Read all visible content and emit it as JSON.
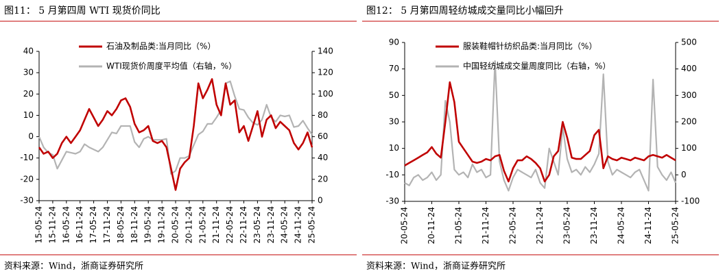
{
  "chart_data": [
    {
      "type": "line",
      "title": "图11：  5 月第四周 WTI 现货价同比",
      "source": "资料来源：Wind，浙商证券研究所",
      "categories": [
        "15-05-24",
        null,
        null,
        "15-11-24",
        null,
        null,
        "16-05-24",
        null,
        null,
        "16-11-24",
        null,
        null,
        "17-05-24",
        null,
        null,
        "17-11-24",
        null,
        null,
        "18-05-24",
        null,
        null,
        "18-11-24",
        null,
        null,
        "19-05-24",
        null,
        null,
        "19-11-24",
        null,
        null,
        "20-05-24",
        null,
        null,
        "20-11-24",
        null,
        null,
        "21-05-24",
        null,
        null,
        "21-11-24",
        null,
        null,
        "22-05-24",
        null,
        null,
        "22-11-24",
        null,
        null,
        "23-05-24",
        null,
        null,
        "23-11-24",
        null,
        null,
        "24-05-24",
        null,
        null,
        "24-11-24",
        null,
        null,
        "25-05-24"
      ],
      "ylim": [
        -30,
        40
      ],
      "yticks": [
        -30,
        -20,
        -10,
        0,
        10,
        20,
        30,
        40
      ],
      "y2lim": [
        0,
        140
      ],
      "y2ticks": [
        0,
        20,
        40,
        60,
        80,
        100,
        120,
        140
      ],
      "series": [
        {
          "name": "石油及制品类:当月同比（%）",
          "color": "#c00000",
          "values": [
            -5,
            -8,
            -7,
            -10,
            -8,
            -3,
            0,
            -3,
            0,
            3,
            8,
            13,
            9,
            5,
            8,
            12,
            10,
            13,
            17,
            18,
            14,
            6,
            2,
            3,
            5,
            -2,
            -3,
            -2,
            -5,
            -15,
            -25,
            -15,
            -12,
            -10,
            5,
            25,
            18,
            22,
            27,
            15,
            10,
            25,
            15,
            17,
            2,
            5,
            -2,
            5,
            12,
            0,
            8,
            10,
            4,
            7,
            5,
            3,
            -3,
            -6,
            -3,
            2,
            -5
          ]
        },
        {
          "name": "WTI现货价周度平均值（右轴，%）",
          "color": "#b3b3b3",
          "axis": "y2",
          "values": [
            60,
            50,
            45,
            43,
            30,
            38,
            46,
            45,
            44,
            46,
            53,
            50,
            48,
            46,
            50,
            57,
            64,
            63,
            70,
            70,
            70,
            55,
            50,
            58,
            60,
            57,
            57,
            57,
            58,
            25,
            28,
            40,
            40,
            42,
            52,
            62,
            65,
            72,
            72,
            78,
            85,
            110,
            112,
            98,
            86,
            85,
            78,
            73,
            71,
            76,
            90,
            78,
            74,
            80,
            79,
            80,
            69,
            70,
            75,
            68,
            62
          ]
        }
      ]
    },
    {
      "type": "line",
      "title": "图12：  5 月第四周轻纺城成交量同比小幅回升",
      "source": "资料来源：Wind，浙商证券研究所",
      "categories": [
        "20-05-24",
        null,
        null,
        null,
        null,
        null,
        "20-11-24",
        null,
        null,
        null,
        null,
        null,
        "21-05-24",
        null,
        null,
        null,
        null,
        null,
        "21-11-24",
        null,
        null,
        null,
        null,
        null,
        "22-05-24",
        null,
        null,
        null,
        null,
        null,
        "22-11-24",
        null,
        null,
        null,
        null,
        null,
        "23-05-24",
        null,
        null,
        null,
        null,
        null,
        "23-11-24",
        null,
        null,
        null,
        null,
        null,
        "24-05-24",
        null,
        null,
        null,
        null,
        null,
        "24-11-24",
        null,
        null,
        null,
        null,
        null,
        "25-05-24"
      ],
      "ylim": [
        -30,
        90
      ],
      "yticks": [
        -30,
        -10,
        10,
        30,
        50,
        70,
        90
      ],
      "y2lim": [
        -100,
        500
      ],
      "y2ticks": [
        -100,
        0,
        100,
        200,
        300,
        400,
        500
      ],
      "series": [
        {
          "name": "服装鞋帽针纺织品类:当月同比（%）",
          "color": "#c00000",
          "values": [
            -3,
            -1,
            1,
            3,
            5,
            7,
            11,
            6,
            3,
            30,
            60,
            45,
            15,
            10,
            5,
            0,
            -1,
            0,
            2,
            1,
            4,
            5,
            -7,
            -15,
            -5,
            1,
            1,
            4,
            2,
            -1,
            -5,
            -15,
            -10,
            4,
            8,
            30,
            18,
            3,
            2,
            2,
            5,
            8,
            20,
            24,
            -5,
            4,
            2,
            1,
            3,
            2,
            1,
            3,
            2,
            1,
            4,
            5,
            4,
            3,
            5,
            3,
            1
          ]
        },
        {
          "name": "中国轻纺城成交量周度同比（右轴，%）",
          "color": "#b3b3b3",
          "axis": "y2",
          "values": [
            -30,
            -40,
            -10,
            0,
            -20,
            -10,
            10,
            -20,
            0,
            280,
            200,
            20,
            0,
            10,
            -10,
            40,
            10,
            20,
            -10,
            0,
            430,
            50,
            -20,
            -60,
            -10,
            20,
            10,
            0,
            -10,
            20,
            -30,
            -50,
            100,
            50,
            0,
            180,
            60,
            10,
            20,
            0,
            30,
            10,
            40,
            80,
            380,
            50,
            0,
            20,
            10,
            0,
            -10,
            10,
            20,
            -20,
            -60,
            360,
            30,
            0,
            -20,
            10,
            -30
          ]
        }
      ]
    }
  ]
}
